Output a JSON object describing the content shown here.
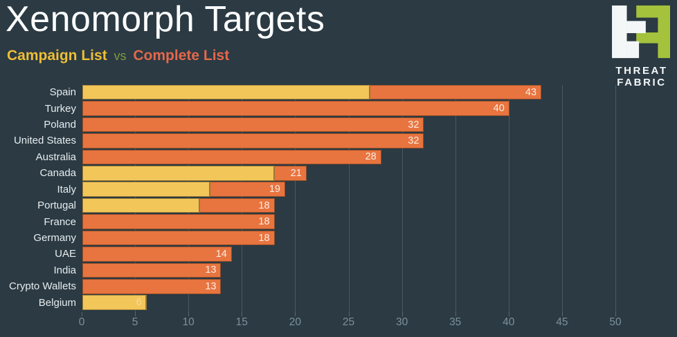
{
  "header": {
    "title": "Xenomorph Targets",
    "subtitle_campaign": "Campaign List",
    "subtitle_vs": "vs",
    "subtitle_complete": "Complete List"
  },
  "logo": {
    "name": "threatfabric-logo",
    "line1": "THREAT",
    "line2": "FABRIC",
    "green": "#a4c23c",
    "white": "#f4f7f8"
  },
  "colors": {
    "background": "#2b3a43",
    "campaign_bar": "#f3c65a",
    "complete_bar": "#e8743f",
    "campaign_text": "#eebe37",
    "vs_text": "#7e9a3c",
    "complete_text": "#e4684b",
    "axis_label": "#7d929c",
    "category_label": "#e7edef",
    "value_label": "#faeee5"
  },
  "chart_data": {
    "type": "bar",
    "orientation": "horizontal",
    "title": "Xenomorph Targets",
    "subtitle": "Campaign List vs Complete List",
    "categories": [
      "Spain",
      "Turkey",
      "Poland",
      "United States",
      "Australia",
      "Canada",
      "Italy",
      "Portugal",
      "France",
      "Germany",
      "UAE",
      "India",
      "Crypto Wallets",
      "Belgium"
    ],
    "series": [
      {
        "name": "Campaign List",
        "color": "#f3c65a",
        "values": [
          27,
          0,
          0,
          0,
          0,
          18,
          12,
          11,
          0,
          0,
          0,
          0,
          0,
          6
        ]
      },
      {
        "name": "Complete List",
        "color": "#e8743f",
        "values": [
          43,
          40,
          32,
          32,
          28,
          21,
          19,
          18,
          18,
          18,
          14,
          13,
          13,
          6
        ]
      }
    ],
    "bar_value_labels": [
      "43",
      "40",
      "32",
      "32",
      "28",
      "21",
      "19",
      "18",
      "18",
      "18",
      "14",
      "13",
      "13",
      "6"
    ],
    "xlabel": "",
    "ylabel": "",
    "xlim": [
      0,
      55.7
    ],
    "xticks": [
      0,
      5,
      10,
      15,
      20,
      25,
      30,
      35,
      40,
      45,
      50
    ],
    "grid": "vertical-every-5",
    "legend_position": "subtitle"
  }
}
